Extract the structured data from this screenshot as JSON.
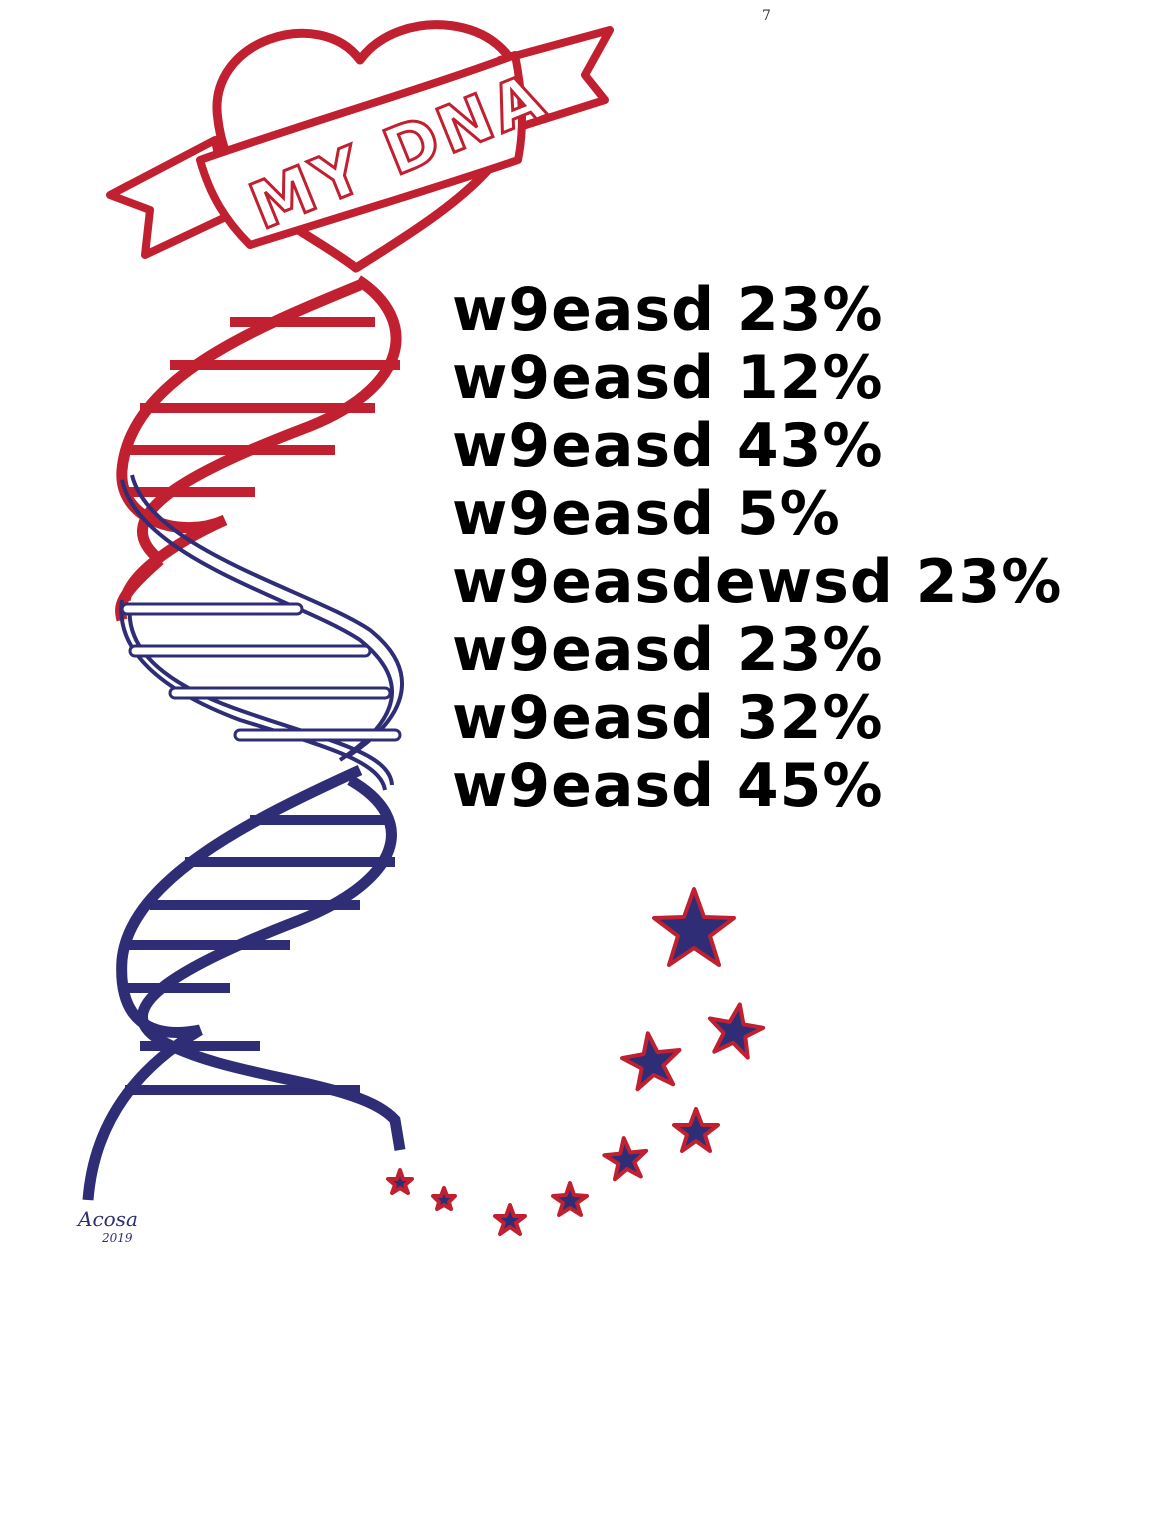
{
  "page_number": "7",
  "banner": {
    "text": "MY DNA"
  },
  "signature": {
    "name": "Acosa",
    "year": "2019"
  },
  "entries": [
    {
      "name": "w9easd",
      "percent": "23%"
    },
    {
      "name": "w9easd",
      "percent": "12%"
    },
    {
      "name": "w9easd",
      "percent": "43%"
    },
    {
      "name": "w9easd",
      "percent": "5%"
    },
    {
      "name": "w9easdewsd",
      "percent": "23%"
    },
    {
      "name": "w9easd",
      "percent": "23%"
    },
    {
      "name": "w9easd",
      "percent": "32%"
    },
    {
      "name": "w9easd",
      "percent": "45%"
    }
  ],
  "colors": {
    "red": "#c0202f",
    "navy": "#2e2d75",
    "text": "#000000"
  },
  "icons": [
    "heart-icon",
    "ribbon-banner",
    "dna-helix",
    "star-icon"
  ]
}
